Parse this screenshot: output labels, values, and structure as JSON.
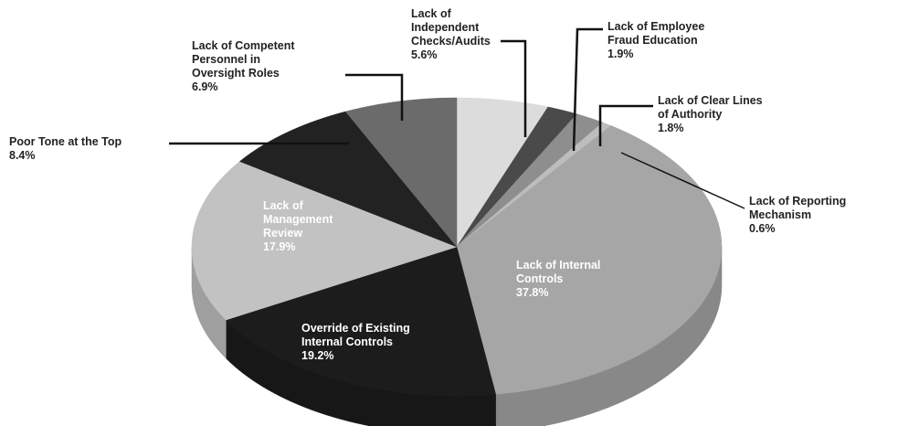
{
  "chart_data": {
    "type": "pie",
    "categories": [
      "Lack of Independent Checks/Audits",
      "Lack of Employee Fraud Education",
      "Lack of Clear Lines of Authority",
      "Lack of Reporting Mechanism",
      "Lack of Internal Controls",
      "Override of Existing Internal Controls",
      "Lack of Management Review",
      "Poor Tone at the Top",
      "Lack of Competent Personnel in Oversight Roles"
    ],
    "values": [
      5.6,
      1.9,
      1.8,
      0.6,
      37.8,
      19.2,
      17.9,
      8.4,
      6.9
    ],
    "value_labels": [
      "5.6%",
      "1.9%",
      "1.8%",
      "0.6%",
      "37.8%",
      "19.2%",
      "17.9%",
      "8.4%",
      "6.9%"
    ],
    "colors": [
      "#dcdcdc",
      "#4a4a4a",
      "#8e8e8e",
      "#bdbdbd",
      "#a6a6a6",
      "#1c1c1c",
      "#c2c2c2",
      "#222222",
      "#6b6b6b"
    ]
  }
}
